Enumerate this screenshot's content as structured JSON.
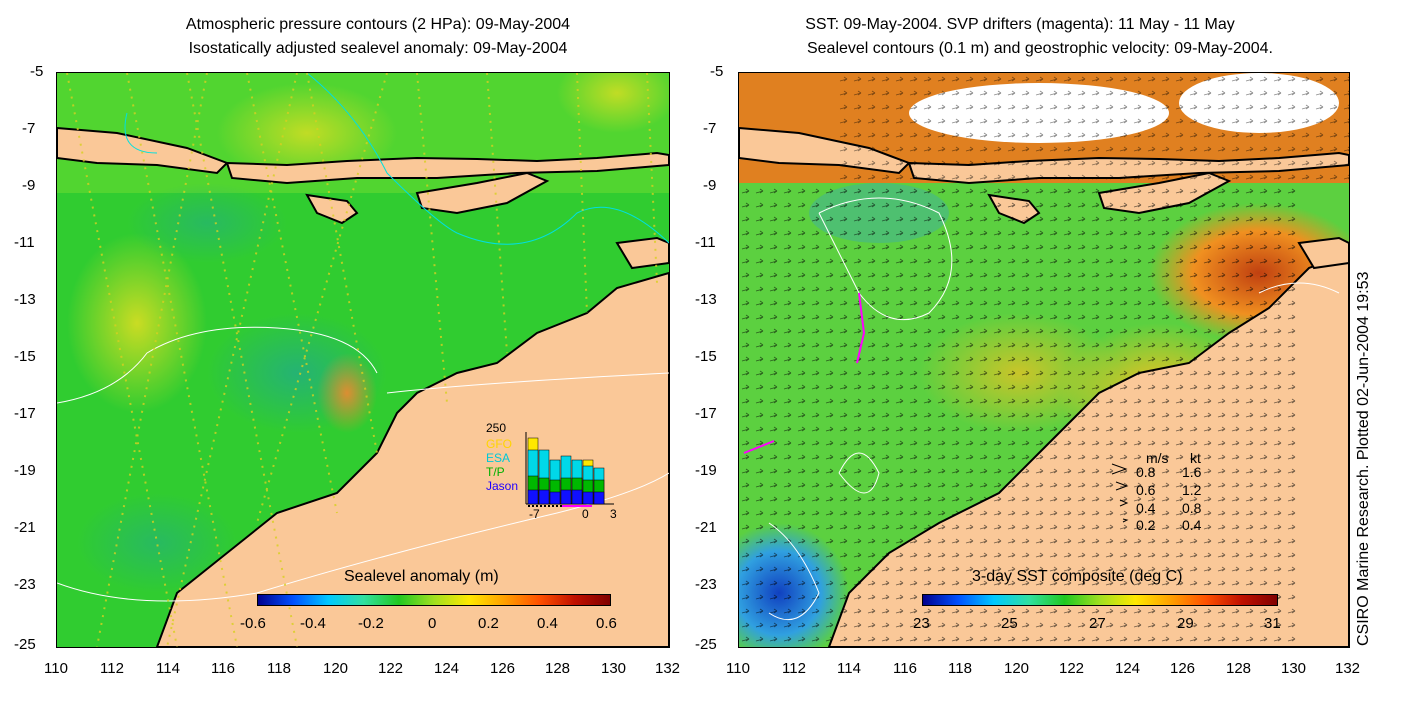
{
  "left_panel": {
    "title_line1": "Atmospheric pressure contours (2 HPa): 09-May-2004",
    "title_line2": "Isostatically adjusted sealevel anomaly: 09-May-2004",
    "colorbar_label": "Sealevel anomaly (m)",
    "colorbar_ticks": [
      "-0.6",
      "-0.4",
      "-0.2",
      "0",
      "0.2",
      "0.4",
      "0.6"
    ],
    "inset": {
      "ymax_label": "250",
      "series": [
        {
          "name": "GFO",
          "color": "#ffd400"
        },
        {
          "name": "ESA",
          "color": "#00d0e0"
        },
        {
          "name": "T/P",
          "color": "#00b000"
        },
        {
          "name": "Jason",
          "color": "#2000ff"
        }
      ],
      "x_ticks": [
        "-7",
        "0",
        "3"
      ]
    }
  },
  "right_panel": {
    "title_line1": "SST: 09-May-2004. SVP drifters (magenta): 11 May - 11 May",
    "title_line2": "Sealevel contours (0.1 m) and geostrophic velocity: 09-May-2004.",
    "colorbar_label": "3-day SST composite (deg C)",
    "colorbar_ticks": [
      "23",
      "25",
      "27",
      "29",
      "31"
    ],
    "velocity_legend": {
      "header_ms": "m/s",
      "header_kt": "kt",
      "rows": [
        {
          "ms": "0.8",
          "kt": "1.6"
        },
        {
          "ms": "0.6",
          "kt": "1.2"
        },
        {
          "ms": "0.4",
          "kt": "0.8"
        },
        {
          "ms": "0.2",
          "kt": "0.4"
        }
      ]
    }
  },
  "y_ticks": [
    "-5",
    "-7",
    "-9",
    "-11",
    "-13",
    "-15",
    "-17",
    "-19",
    "-21",
    "-23",
    "-25"
  ],
  "x_ticks": [
    "110",
    "112",
    "114",
    "116",
    "118",
    "120",
    "122",
    "124",
    "126",
    "128",
    "130",
    "132"
  ],
  "credit": "CSIRO Marine Research. Plotted 02-Jun-2004 19:53",
  "colors": {
    "land": "#fac898",
    "sla_green": "#2ecc2e",
    "coast": "#000000"
  }
}
